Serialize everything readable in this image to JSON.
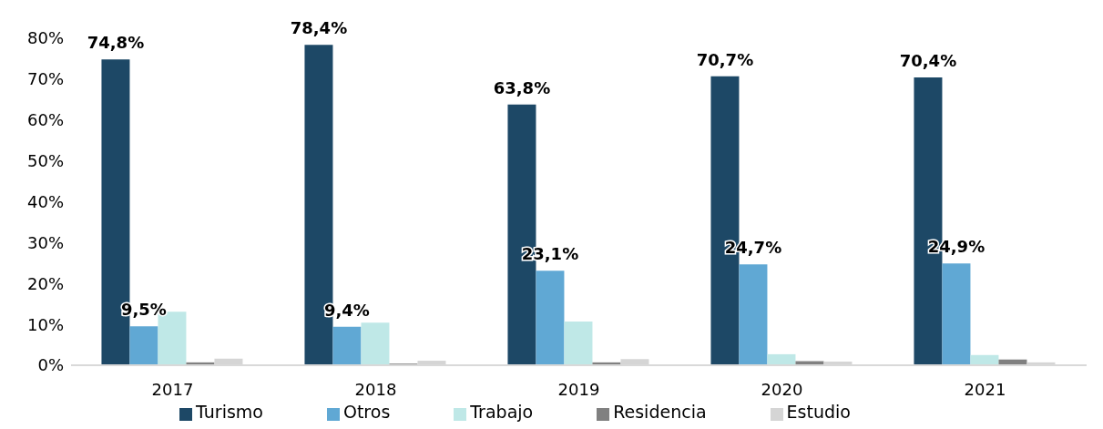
{
  "chart_data": {
    "type": "bar",
    "categories": [
      "2017",
      "2018",
      "2019",
      "2020",
      "2021"
    ],
    "series": [
      {
        "name": "Turismo",
        "color": "#1d4866",
        "values": [
          74.8,
          78.4,
          63.8,
          70.7,
          70.4
        ],
        "value_labels": [
          "74,8%",
          "78,4%",
          "63,8%",
          "70,7%",
          "70,4%"
        ]
      },
      {
        "name": "Otros",
        "color": "#60a8d4",
        "values": [
          9.5,
          9.4,
          23.1,
          24.7,
          24.9
        ],
        "value_labels": [
          "9,5%",
          "9,4%",
          "23,1%",
          "24,7%",
          "24,9%"
        ]
      },
      {
        "name": "Trabajo",
        "color": "#bfe8e7",
        "values": [
          13.1,
          10.4,
          10.7,
          2.7,
          2.5
        ]
      },
      {
        "name": "Residencia",
        "color": "#808080",
        "values": [
          0.7,
          0.4,
          0.7,
          1.0,
          1.4
        ]
      },
      {
        "name": "Estudio",
        "color": "#d5d5d5",
        "values": [
          1.6,
          1.1,
          1.5,
          0.9,
          0.7
        ]
      }
    ],
    "ylim": [
      0,
      80
    ],
    "yticks": [
      {
        "value": 0,
        "label": "0%"
      },
      {
        "value": 10,
        "label": "10%"
      },
      {
        "value": 20,
        "label": "20%"
      },
      {
        "value": 30,
        "label": "30%"
      },
      {
        "value": 40,
        "label": "40%"
      },
      {
        "value": 50,
        "label": "50%"
      },
      {
        "value": 60,
        "label": "60%"
      },
      {
        "value": 70,
        "label": "70%"
      },
      {
        "value": 80,
        "label": "80%"
      }
    ],
    "grid": false,
    "legend": "bottom"
  }
}
